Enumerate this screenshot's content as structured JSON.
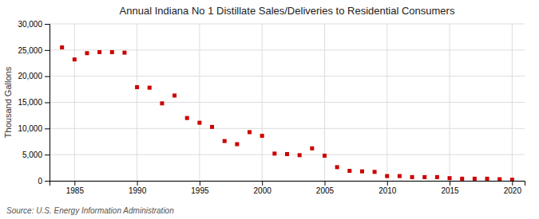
{
  "chart_data": {
    "type": "scatter",
    "title": "Annual Indiana No 1 Distillate Sales/Deliveries to Residential Consumers",
    "ylabel": "Thousand Gallons",
    "source": "Source: U.S. Energy Information Administration",
    "x": [
      1984,
      1985,
      1986,
      1987,
      1988,
      1989,
      1990,
      1991,
      1992,
      1993,
      1994,
      1995,
      1996,
      1997,
      1998,
      1999,
      2000,
      2001,
      2002,
      2003,
      2004,
      2005,
      2006,
      2007,
      2008,
      2009,
      2010,
      2011,
      2012,
      2013,
      2014,
      2015,
      2016,
      2017,
      2018,
      2019,
      2020
    ],
    "values": [
      25500,
      23200,
      24400,
      24600,
      24600,
      24500,
      17900,
      17800,
      14800,
      16300,
      12000,
      11100,
      10300,
      7600,
      7000,
      9300,
      8600,
      5200,
      5100,
      4900,
      6200,
      4800,
      2600,
      1900,
      1800,
      1700,
      900,
      900,
      700,
      700,
      700,
      500,
      400,
      400,
      400,
      300,
      200
    ],
    "color": "#CC0000",
    "marker": "square",
    "xlim": [
      1983,
      2021
    ],
    "ylim": [
      0,
      30000
    ],
    "xticks": [
      1985,
      1990,
      1995,
      2000,
      2005,
      2010,
      2015,
      2020
    ],
    "yticks": [
      0,
      {
        "value": 5000,
        "label": "5,000"
      },
      {
        "value": 10000,
        "label": "10,000"
      },
      {
        "value": 15000,
        "label": "15,000"
      },
      {
        "value": 20000,
        "label": "20,000"
      },
      {
        "value": 25000,
        "label": "25,000"
      },
      {
        "value": 30000,
        "label": "30,000"
      }
    ],
    "grid": true
  }
}
